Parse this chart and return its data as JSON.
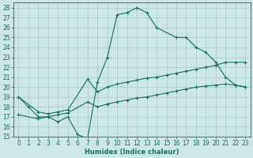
{
  "title": "",
  "xlabel": "Humidex (Indice chaleur)",
  "ylabel": "",
  "bg_color": "#cce8e4",
  "grid_color": "#aacfcb",
  "line_color": "#1a6e62",
  "xlim": [
    -0.5,
    23.5
  ],
  "ylim": [
    15,
    28.5
  ],
  "yticks": [
    15,
    16,
    17,
    18,
    19,
    20,
    21,
    22,
    23,
    24,
    25,
    26,
    27,
    28
  ],
  "xticks": [
    0,
    1,
    2,
    3,
    4,
    5,
    6,
    7,
    8,
    9,
    10,
    11,
    12,
    13,
    14,
    15,
    16,
    17,
    18,
    19,
    20,
    21,
    22,
    23
  ],
  "curve1_x": [
    0,
    1,
    2,
    3,
    4,
    5,
    6,
    7,
    8,
    9,
    10,
    11,
    12,
    13,
    14,
    16,
    17,
    18,
    19,
    20,
    21,
    22,
    23
  ],
  "curve1_y": [
    19.0,
    18.0,
    17.0,
    17.0,
    16.5,
    17.0,
    15.2,
    14.8,
    20.5,
    23.0,
    27.3,
    27.5,
    28.0,
    27.5,
    26.0,
    25.0,
    25.0,
    24.0,
    23.5,
    22.5,
    21.0,
    20.2,
    20.0
  ],
  "curve2_x": [
    0,
    2,
    3,
    4,
    5,
    7,
    8,
    9,
    10,
    11,
    12,
    13,
    14,
    15,
    16,
    17,
    18,
    19,
    20,
    21,
    22,
    23
  ],
  "curve2_y": [
    19.0,
    17.5,
    17.3,
    17.5,
    17.7,
    20.8,
    19.5,
    20.0,
    20.3,
    20.5,
    20.7,
    20.9,
    21.0,
    21.2,
    21.4,
    21.6,
    21.8,
    22.0,
    22.2,
    22.5,
    22.5,
    22.5
  ],
  "curve3_x": [
    0,
    2,
    3,
    4,
    5,
    7,
    8,
    9,
    10,
    11,
    12,
    13,
    14,
    15,
    16,
    17,
    18,
    19,
    20,
    21,
    22,
    23
  ],
  "curve3_y": [
    17.2,
    16.8,
    17.0,
    17.2,
    17.4,
    18.5,
    18.0,
    18.3,
    18.5,
    18.7,
    18.9,
    19.0,
    19.2,
    19.4,
    19.6,
    19.8,
    20.0,
    20.1,
    20.2,
    20.3,
    20.2,
    20.0
  ],
  "fontsize_label": 6,
  "fontsize_tick": 5.5
}
